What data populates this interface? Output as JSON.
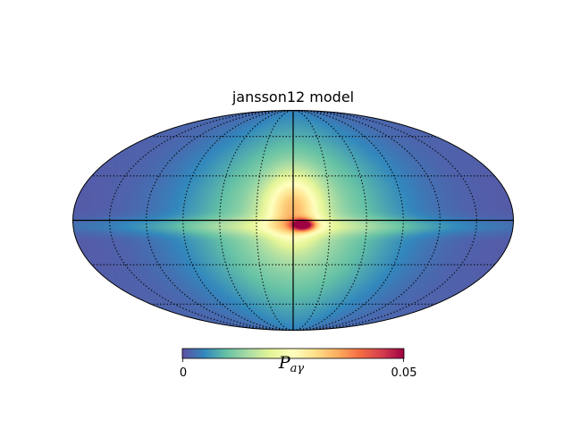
{
  "chart_data": {
    "type": "heatmap",
    "title": "jansson12 model",
    "projection": "mollweide",
    "colormap": "Spectral_r",
    "colormap_stops": [
      "#5e4fa2",
      "#3288bd",
      "#66c2a5",
      "#abdda4",
      "#e6f598",
      "#ffffbf",
      "#fee08b",
      "#fdae61",
      "#f46d43",
      "#d53e4f",
      "#9e0142"
    ],
    "colorbar": {
      "label": "P_{aγ}",
      "label_base": "P",
      "label_subscript": "aγ",
      "vmin": 0,
      "vmax": 0.05,
      "ticks": [
        "0",
        "0.05"
      ]
    },
    "graticule": {
      "parallels_deg": [
        -60,
        -30,
        30,
        60
      ],
      "meridians_deg": [
        -150,
        -120,
        -90,
        -60,
        -30,
        30,
        60,
        90,
        120,
        150
      ],
      "style": "dotted"
    },
    "axes_lines": {
      "equator": true,
      "central_meridian": true
    },
    "features": [
      {
        "description": "central bright bulge",
        "lon": 0,
        "lat": 5,
        "peak_value": 0.03
      },
      {
        "description": "hotspot below center",
        "lon": 5,
        "lat": -3,
        "peak_value": 0.05
      },
      {
        "description": "background",
        "value": 0.002
      }
    ]
  }
}
